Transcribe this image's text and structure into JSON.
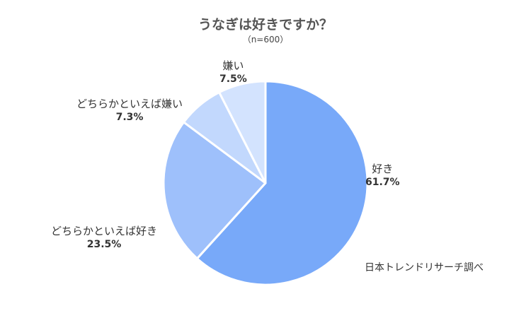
{
  "chart_data": {
    "type": "pie",
    "title": "うなぎは好きですか？",
    "subtitle": "（n=600）",
    "slices": [
      {
        "label": "好き",
        "value": 61.7,
        "value_label": "61.7%",
        "color": "#78a9f9"
      },
      {
        "label": "どちらかといえば好き",
        "value": 23.5,
        "value_label": "23.5%",
        "color": "#9ec0fb"
      },
      {
        "label": "どちらかといえば嫌い",
        "value": 7.3,
        "value_label": "7.3%",
        "color": "#c2d8fd"
      },
      {
        "label": "嫌い",
        "value": 7.5,
        "value_label": "7.5%",
        "color": "#d3e3fe"
      }
    ],
    "source": "日本トレンドリサーチ調べ"
  }
}
